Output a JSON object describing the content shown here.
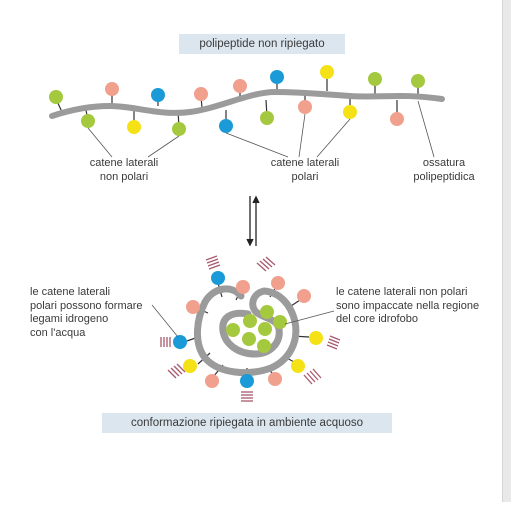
{
  "top_title": "polipeptide non ripiegato",
  "bottom_title": "conformazione ripiegata in ambiente acquoso",
  "labels": {
    "non_polar_side_chains": [
      "catene laterali",
      "non polari"
    ],
    "polar_side_chains": [
      "catene laterali",
      "polari"
    ],
    "backbone": [
      "ossatura",
      "polipeptidica"
    ],
    "polar_hbond_water": [
      "le catene laterali",
      "polari possono formare",
      "legami idrogeno",
      "con l'acqua"
    ],
    "nonpolar_core": [
      "le catene laterali non polari",
      "sono impaccate nella regione",
      "del core idrofobo"
    ]
  },
  "colors": {
    "backbone": "#9b9b9b",
    "nonpolar": "#a4c93f",
    "polar_salmon": "#f0a08c",
    "polar_blue": "#1a9ad6",
    "polar_yellow": "#f4e217",
    "water_stripes": "#a85a6e",
    "title_box": "#dbe6ef"
  },
  "icons": {
    "equilibrium": "equilibrium-arrows-icon"
  }
}
